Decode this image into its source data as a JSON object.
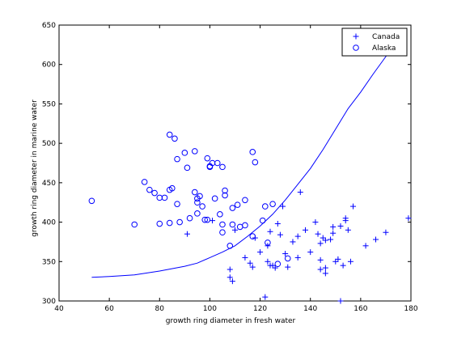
{
  "chart_data": {
    "type": "scatter",
    "title": "",
    "xlabel": "growth ring diameter in fresh water",
    "ylabel": "growth ring diameter in marine water",
    "xlim": [
      40,
      180
    ],
    "ylim": [
      300,
      650
    ],
    "xticks": [
      40,
      60,
      80,
      100,
      120,
      140,
      160,
      180
    ],
    "yticks": [
      300,
      350,
      400,
      450,
      500,
      550,
      600,
      650
    ],
    "grid": false,
    "legend_position": "top-right",
    "series": [
      {
        "name": "Canada",
        "marker": "plus",
        "color": "#0000ff",
        "points": [
          [
            91,
            385
          ],
          [
            101,
            402
          ],
          [
            108,
            340
          ],
          [
            108,
            330
          ],
          [
            109,
            325
          ],
          [
            110,
            390
          ],
          [
            114,
            355
          ],
          [
            116,
            348
          ],
          [
            117,
            343
          ],
          [
            118,
            380
          ],
          [
            120,
            362
          ],
          [
            122,
            305
          ],
          [
            123,
            370
          ],
          [
            123,
            350
          ],
          [
            124,
            345
          ],
          [
            125,
            345
          ],
          [
            126,
            342
          ],
          [
            124,
            388
          ],
          [
            127,
            398
          ],
          [
            128,
            384
          ],
          [
            129,
            420
          ],
          [
            130,
            360
          ],
          [
            131,
            343
          ],
          [
            133,
            375
          ],
          [
            135,
            382
          ],
          [
            135,
            355
          ],
          [
            136,
            438
          ],
          [
            138,
            390
          ],
          [
            140,
            362
          ],
          [
            142,
            400
          ],
          [
            143,
            385
          ],
          [
            144,
            352
          ],
          [
            144,
            373
          ],
          [
            144,
            340
          ],
          [
            145,
            380
          ],
          [
            146,
            377
          ],
          [
            146,
            342
          ],
          [
            146,
            335
          ],
          [
            148,
            378
          ],
          [
            149,
            386
          ],
          [
            149,
            394
          ],
          [
            150,
            350
          ],
          [
            151,
            353
          ],
          [
            152,
            300
          ],
          [
            152,
            395
          ],
          [
            153,
            345
          ],
          [
            154,
            402
          ],
          [
            154,
            405
          ],
          [
            155,
            390
          ],
          [
            156,
            350
          ],
          [
            157,
            420
          ],
          [
            162,
            370
          ],
          [
            166,
            378
          ],
          [
            170,
            387
          ],
          [
            179,
            405
          ]
        ]
      },
      {
        "name": "Alaska",
        "marker": "circle",
        "color": "#0000ff",
        "points": [
          [
            53,
            427
          ],
          [
            70,
            397
          ],
          [
            74,
            451
          ],
          [
            76,
            441
          ],
          [
            78,
            437
          ],
          [
            80,
            398
          ],
          [
            80,
            431
          ],
          [
            82,
            431
          ],
          [
            84,
            511
          ],
          [
            84,
            399
          ],
          [
            84,
            441
          ],
          [
            85,
            443
          ],
          [
            86,
            506
          ],
          [
            87,
            480
          ],
          [
            87,
            423
          ],
          [
            88,
            400
          ],
          [
            90,
            488
          ],
          [
            91,
            469
          ],
          [
            92,
            405
          ],
          [
            94,
            490
          ],
          [
            94,
            438
          ],
          [
            95,
            430
          ],
          [
            95,
            425
          ],
          [
            95,
            411
          ],
          [
            96,
            433
          ],
          [
            97,
            420
          ],
          [
            98,
            403
          ],
          [
            99,
            403
          ],
          [
            99,
            481
          ],
          [
            100,
            470
          ],
          [
            100,
            471
          ],
          [
            101,
            475
          ],
          [
            102,
            430
          ],
          [
            103,
            475
          ],
          [
            104,
            410
          ],
          [
            105,
            470
          ],
          [
            105,
            387
          ],
          [
            105,
            397
          ],
          [
            106,
            440
          ],
          [
            106,
            434
          ],
          [
            108,
            370
          ],
          [
            109,
            397
          ],
          [
            109,
            418
          ],
          [
            111,
            422
          ],
          [
            112,
            394
          ],
          [
            114,
            428
          ],
          [
            114,
            396
          ],
          [
            117,
            489
          ],
          [
            117,
            382
          ],
          [
            118,
            476
          ],
          [
            121,
            402
          ],
          [
            122,
            420
          ],
          [
            123,
            374
          ],
          [
            125,
            423
          ],
          [
            127,
            347
          ],
          [
            131,
            354
          ]
        ]
      }
    ],
    "decision_curve": {
      "name": "",
      "color": "#0000ff",
      "points": [
        [
          53,
          330
        ],
        [
          60,
          331
        ],
        [
          70,
          333
        ],
        [
          80,
          338
        ],
        [
          90,
          344
        ],
        [
          95,
          348
        ],
        [
          100,
          355
        ],
        [
          105,
          362
        ],
        [
          110,
          370
        ],
        [
          115,
          382
        ],
        [
          120,
          395
        ],
        [
          125,
          410
        ],
        [
          130,
          428
        ],
        [
          135,
          448
        ],
        [
          140,
          468
        ],
        [
          145,
          492
        ],
        [
          150,
          518
        ],
        [
          155,
          544
        ],
        [
          160,
          565
        ],
        [
          165,
          588
        ],
        [
          170,
          610
        ],
        [
          175,
          630
        ],
        [
          178,
          640
        ]
      ]
    }
  }
}
